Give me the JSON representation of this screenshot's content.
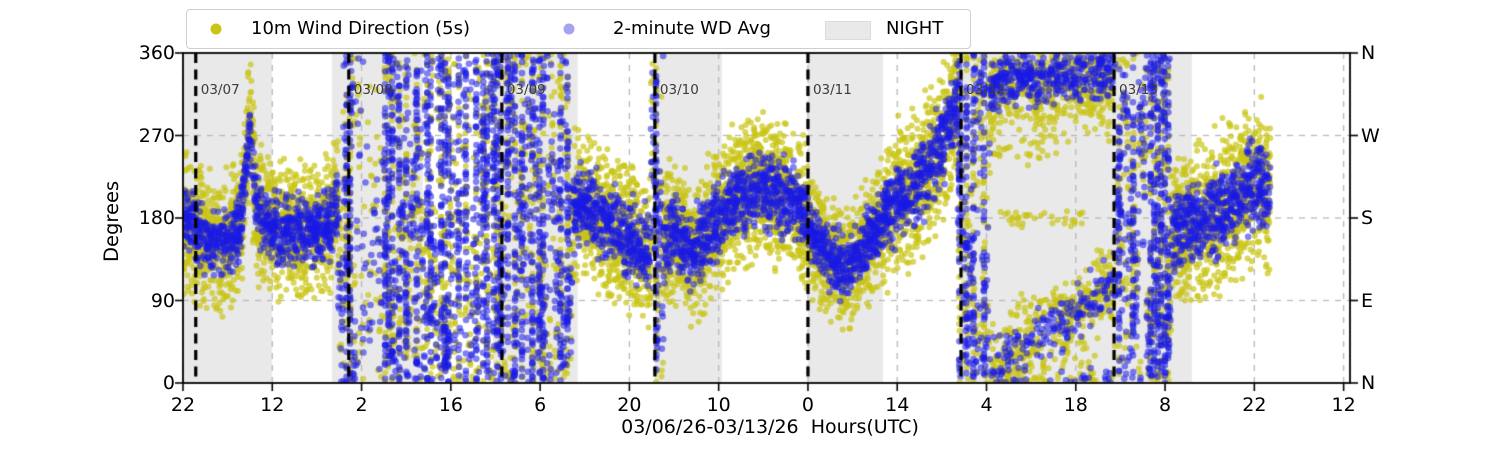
{
  "legend": {
    "items": [
      {
        "label": "10m Wind Direction (5s)",
        "marker": "dot"
      },
      {
        "label": "2-minute WD Avg",
        "marker": "dot"
      },
      {
        "label": "NIGHT",
        "marker": "patch"
      }
    ]
  },
  "colors": {
    "wind_5s": "#c9c516",
    "wd_avg_plot": "#1a1ae6",
    "wd_avg_legend": "#a3a3ef",
    "night": "#e9e9e9",
    "grid": "#b9b9b9",
    "spine": "#000000",
    "date_line": "#000000",
    "date_text": "#3c3c3c"
  },
  "chart_data": {
    "type": "scatter",
    "xlabel": "03/06/26-03/13/26  Hours(UTC)",
    "ylabel": "Degrees",
    "ylim": [
      0,
      360
    ],
    "x_hours_span": 183,
    "x_start": "03/06/26 22:00 UTC",
    "grid": true,
    "legend_position": "top-center-outside",
    "yticks": {
      "values": [
        0,
        90,
        180,
        270,
        360
      ],
      "labels": [
        "0",
        "90",
        "180",
        "270",
        "360"
      ]
    },
    "right_axis": {
      "values": [
        0,
        90,
        180,
        270,
        360
      ],
      "labels": [
        "N",
        "E",
        "S",
        "W",
        "N"
      ]
    },
    "xticks": {
      "hours_after_start": [
        0,
        14,
        28,
        42,
        56,
        70,
        84,
        98,
        112,
        126,
        140,
        154,
        168,
        182
      ],
      "labels": [
        "22",
        "12",
        "2",
        "16",
        "6",
        "20",
        "10",
        "0",
        "14",
        "4",
        "18",
        "8",
        "22",
        "12"
      ]
    },
    "series": [
      {
        "name": "10m Wind Direction (5s)",
        "role": "raw",
        "color": "#c9c516"
      },
      {
        "name": "2-minute WD Avg",
        "role": "average",
        "color": "#1a1ae6"
      }
    ],
    "night_bands_hours": [
      [
        0,
        13.95
      ],
      [
        23.35,
        37.6
      ],
      [
        48.6,
        61.9
      ],
      [
        74,
        84.5
      ],
      [
        98,
        109.75
      ],
      [
        122,
        158.2
      ]
    ],
    "date_lines": [
      {
        "label": "03/07",
        "hours": 2
      },
      {
        "label": "03/08",
        "hours": 26
      },
      {
        "label": "03/09",
        "hours": 50
      },
      {
        "label": "03/10",
        "hours": 74
      },
      {
        "label": "03/11",
        "hours": 98
      },
      {
        "label": "03/12",
        "hours": 122
      },
      {
        "label": "03/13",
        "hours": 146
      }
    ],
    "data_end_hours": 170.5,
    "segments": [
      {
        "type": "calm",
        "t0": 0,
        "t1": 24.3,
        "blue_sigma": 17,
        "yellow_sigma": 31,
        "keyframes": [
          [
            0,
            178
          ],
          [
            2,
            168
          ],
          [
            5,
            148
          ],
          [
            7,
            155
          ],
          [
            9,
            168
          ],
          [
            10,
            250
          ],
          [
            10.6,
            272
          ],
          [
            11.5,
            190
          ],
          [
            13,
            175
          ],
          [
            15,
            165
          ],
          [
            17,
            168
          ],
          [
            19,
            163
          ],
          [
            21,
            168
          ],
          [
            23,
            172
          ],
          [
            24.3,
            200
          ]
        ]
      },
      {
        "type": "chaos",
        "t0": 24.3,
        "t1": 61,
        "sparse": [
          [
            27,
            31.5,
            0.4
          ],
          [
            43,
            46,
            0.6
          ]
        ]
      },
      {
        "type": "calm",
        "t0": 61,
        "t1": 73.4,
        "blue_sigma": 20,
        "yellow_sigma": 33,
        "keyframes": [
          [
            61,
            192
          ],
          [
            63,
            196
          ],
          [
            65,
            180
          ],
          [
            67,
            172
          ],
          [
            69,
            160
          ],
          [
            71,
            150
          ],
          [
            73.4,
            140
          ]
        ]
      },
      {
        "type": "chaos",
        "t0": 73.4,
        "t1": 75.3,
        "sparse": []
      },
      {
        "type": "calm",
        "t0": 75.3,
        "t1": 98,
        "blue_sigma": 19,
        "yellow_sigma": 32,
        "yellow_high": [
          87,
          95,
          55
        ],
        "keyframes": [
          [
            75.3,
            152
          ],
          [
            77,
            168
          ],
          [
            78.5,
            155
          ],
          [
            80,
            140
          ],
          [
            81.5,
            155
          ],
          [
            83,
            170
          ],
          [
            85,
            185
          ],
          [
            87,
            200
          ],
          [
            89,
            208
          ],
          [
            91,
            212
          ],
          [
            93,
            205
          ],
          [
            95,
            198
          ],
          [
            97,
            190
          ],
          [
            98,
            180
          ]
        ]
      },
      {
        "type": "calm",
        "t0": 98,
        "t1": 110,
        "blue_sigma": 16,
        "yellow_sigma": 28,
        "keyframes": [
          [
            98,
            168
          ],
          [
            100,
            148
          ],
          [
            102,
            130
          ],
          [
            104,
            128
          ],
          [
            106,
            142
          ],
          [
            108,
            160
          ],
          [
            110,
            180
          ]
        ]
      },
      {
        "type": "calm",
        "t0": 110,
        "t1": 121.5,
        "blue_sigma": 20,
        "yellow_sigma": 35,
        "keyframes": [
          [
            110,
            185
          ],
          [
            112,
            195
          ],
          [
            114,
            210
          ],
          [
            116,
            228
          ],
          [
            118,
            248
          ],
          [
            120,
            280
          ],
          [
            121.5,
            312
          ]
        ]
      },
      {
        "type": "chaos",
        "t0": 121.5,
        "t1": 126.5,
        "sparse": []
      },
      {
        "type": "split",
        "t0": 126.5,
        "t1": 146,
        "top": [
          [
            126.5,
            320
          ],
          [
            130,
            338
          ],
          [
            134,
            330
          ],
          [
            138,
            335
          ],
          [
            142,
            340
          ],
          [
            146,
            338
          ]
        ],
        "bottom": [
          [
            126.5,
            20
          ],
          [
            130,
            35
          ],
          [
            134,
            50
          ],
          [
            138,
            65
          ],
          [
            142,
            88
          ],
          [
            146,
            105
          ]
        ],
        "top_blue_sigma": 14,
        "top_yellow_sigma": 25,
        "bottom_blue_sigma": 13,
        "bottom_yellow_sigma": 21,
        "mid_lines": [
          [
            180,
            128,
            142,
            9
          ],
          [
            90,
            130,
            144,
            12
          ],
          [
            252,
            127,
            137,
            14
          ]
        ]
      },
      {
        "type": "chaos",
        "t0": 146,
        "t1": 155,
        "sparse": []
      },
      {
        "type": "calm",
        "t0": 155,
        "t1": 170.5,
        "blue_sigma": 21,
        "yellow_sigma": 35,
        "keyframes": [
          [
            155,
            160
          ],
          [
            158,
            170
          ],
          [
            161,
            180
          ],
          [
            164,
            195
          ],
          [
            167,
            212
          ],
          [
            169,
            215
          ],
          [
            170.5,
            205
          ]
        ]
      }
    ]
  }
}
